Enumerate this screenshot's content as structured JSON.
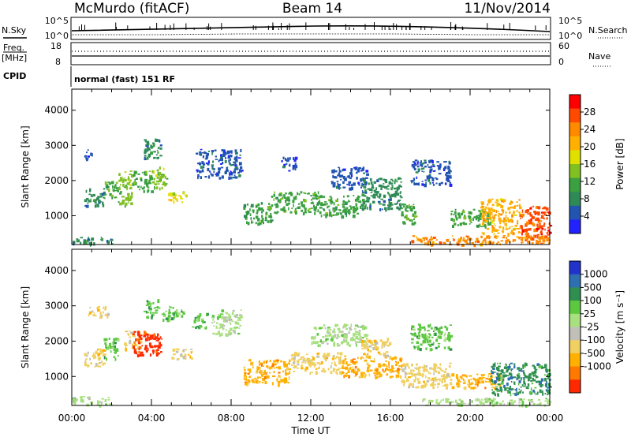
{
  "header": {
    "station": "McMurdo (fitACF)",
    "beam": "Beam 14",
    "date": "11/Nov/2014"
  },
  "status_panel": {
    "nsky_label": "N.Sky",
    "nsearch_label": "N.Search",
    "noise_ticks": [
      "10^5",
      "10^0"
    ],
    "freq_label_1": "Freq.",
    "freq_label_2": "[MHz]",
    "freq_ticks": [
      "18",
      "8"
    ],
    "nave_label": "Nave",
    "nave_ticks": [
      "60",
      "0"
    ],
    "cpid_label": "CPID",
    "cpid_value": "normal (fast) 151 RF"
  },
  "chart_data": [
    {
      "type": "heatmap",
      "name": "power",
      "ylabel": "Slant Range [km]",
      "xlabel": "",
      "xlim": [
        "00:00",
        "24:00"
      ],
      "ylim": [
        180,
        4600
      ],
      "x_ticks": [
        "00:00",
        "04:00",
        "08:00",
        "12:00",
        "16:00",
        "20:00",
        "00:00"
      ],
      "y_ticks": [
        1000,
        2000,
        3000,
        4000
      ],
      "colorbar_label": "Power [dB]",
      "colorbar_ticks": [
        28,
        24,
        20,
        16,
        12,
        8,
        4
      ],
      "colorbar_colors": [
        "#ff0000",
        "#ff4a00",
        "#ff8a00",
        "#ffb000",
        "#e0e000",
        "#80c020",
        "#3aa040",
        "#2e8b57",
        "#2255b0",
        "#2222ff"
      ],
      "colorbar_range": [
        0,
        32
      ],
      "regions": [
        {
          "t": [
            0.6,
            1.6
          ],
          "r": [
            1300,
            1800
          ],
          "v": 8
        },
        {
          "t": [
            0.6,
            1.0
          ],
          "r": [
            2600,
            2900
          ],
          "v": 6
        },
        {
          "t": [
            1.6,
            2.3
          ],
          "r": [
            1500,
            2000
          ],
          "v": 10
        },
        {
          "t": [
            2.3,
            3.0
          ],
          "r": [
            1300,
            2300
          ],
          "v": 14
        },
        {
          "t": [
            3.0,
            4.0
          ],
          "r": [
            1700,
            2300
          ],
          "v": 10
        },
        {
          "t": [
            3.6,
            4.5
          ],
          "r": [
            2600,
            3200
          ],
          "v": 7
        },
        {
          "t": [
            4.0,
            4.8
          ],
          "r": [
            1800,
            2400
          ],
          "v": 14
        },
        {
          "t": [
            4.8,
            5.8
          ],
          "r": [
            1400,
            1700
          ],
          "v": 16
        },
        {
          "t": [
            6.2,
            8.5
          ],
          "r": [
            2100,
            2900
          ],
          "v": 6
        },
        {
          "t": [
            8.6,
            10.0
          ],
          "r": [
            800,
            1400
          ],
          "v": 12
        },
        {
          "t": [
            10.0,
            12.5
          ],
          "r": [
            1100,
            1700
          ],
          "v": 10
        },
        {
          "t": [
            10.5,
            11.2
          ],
          "r": [
            2300,
            2700
          ],
          "v": 6
        },
        {
          "t": [
            12.5,
            14.5
          ],
          "r": [
            1000,
            1600
          ],
          "v": 10
        },
        {
          "t": [
            13.0,
            14.8
          ],
          "r": [
            1800,
            2400
          ],
          "v": 6
        },
        {
          "t": [
            14.5,
            16.5
          ],
          "r": [
            1200,
            2100
          ],
          "v": 8
        },
        {
          "t": [
            16.5,
            17.3
          ],
          "r": [
            800,
            1400
          ],
          "v": 12
        },
        {
          "t": [
            17.0,
            19.0
          ],
          "r": [
            1900,
            2600
          ],
          "v": 6
        },
        {
          "t": [
            19.0,
            21.0
          ],
          "r": [
            700,
            1200
          ],
          "v": 12
        },
        {
          "t": [
            20.5,
            22.5
          ],
          "r": [
            500,
            1500
          ],
          "v": 22
        },
        {
          "t": [
            22.5,
            24.0
          ],
          "r": [
            400,
            1300
          ],
          "v": 26
        },
        {
          "t": [
            17.0,
            24.0
          ],
          "r": [
            200,
            450
          ],
          "v": 24
        },
        {
          "t": [
            0.0,
            2.0
          ],
          "r": [
            200,
            400
          ],
          "v": 8
        }
      ]
    },
    {
      "type": "heatmap",
      "name": "velocity",
      "ylabel": "Slant Range [km]",
      "xlabel": "Time UT",
      "xlim": [
        "00:00",
        "24:00"
      ],
      "ylim": [
        180,
        4600
      ],
      "x_ticks": [
        "00:00",
        "04:00",
        "08:00",
        "12:00",
        "16:00",
        "20:00",
        "00:00"
      ],
      "y_ticks": [
        1000,
        2000,
        3000,
        4000
      ],
      "colorbar_label": "Velocity [m s⁻¹]",
      "colorbar_ticks": [
        1000,
        500,
        100,
        25,
        -25,
        -100,
        -500,
        -1000
      ],
      "colorbar_colors": [
        "#2233cc",
        "#2d6fb0",
        "#2f8f50",
        "#5cc840",
        "#a8e080",
        "#c0c0b8",
        "#f0d060",
        "#ffb000",
        "#ff7800",
        "#ff2800"
      ],
      "regions": [
        {
          "t": [
            0.6,
            1.6
          ],
          "r": [
            1300,
            1800
          ],
          "v": -100
        },
        {
          "t": [
            0.8,
            1.8
          ],
          "r": [
            2700,
            3000
          ],
          "v": -100
        },
        {
          "t": [
            1.6,
            2.3
          ],
          "r": [
            1500,
            2100
          ],
          "v": 100
        },
        {
          "t": [
            2.6,
            3.4
          ],
          "r": [
            1800,
            2300
          ],
          "v": -100
        },
        {
          "t": [
            3.0,
            4.5
          ],
          "r": [
            1600,
            2300
          ],
          "v": -1000
        },
        {
          "t": [
            3.6,
            4.4
          ],
          "r": [
            2700,
            3200
          ],
          "v": 100
        },
        {
          "t": [
            4.5,
            5.6
          ],
          "r": [
            2600,
            3000
          ],
          "v": 100
        },
        {
          "t": [
            6.0,
            6.8
          ],
          "r": [
            2400,
            2800
          ],
          "v": 100
        },
        {
          "t": [
            7.0,
            8.5
          ],
          "r": [
            2200,
            2900
          ],
          "v": 25
        },
        {
          "t": [
            5.0,
            6.0
          ],
          "r": [
            1500,
            1800
          ],
          "v": -100
        },
        {
          "t": [
            8.6,
            11.0
          ],
          "r": [
            800,
            1500
          ],
          "v": -500
        },
        {
          "t": [
            11.0,
            13.5
          ],
          "r": [
            1100,
            1700
          ],
          "v": -100
        },
        {
          "t": [
            12.0,
            14.8
          ],
          "r": [
            1900,
            2500
          ],
          "v": 25
        },
        {
          "t": [
            13.5,
            16.5
          ],
          "r": [
            1000,
            1600
          ],
          "v": -500
        },
        {
          "t": [
            14.5,
            16.0
          ],
          "r": [
            1600,
            2100
          ],
          "v": -100
        },
        {
          "t": [
            16.5,
            19.0
          ],
          "r": [
            700,
            1400
          ],
          "v": -100
        },
        {
          "t": [
            17.0,
            19.0
          ],
          "r": [
            1800,
            2500
          ],
          "v": 100
        },
        {
          "t": [
            19.0,
            21.5
          ],
          "r": [
            700,
            1100
          ],
          "v": -500
        },
        {
          "t": [
            21.0,
            24.0
          ],
          "r": [
            500,
            1400
          ],
          "v": 500
        },
        {
          "t": [
            0.0,
            2.0
          ],
          "r": [
            200,
            450
          ],
          "v": 25
        },
        {
          "t": [
            17.5,
            24.0
          ],
          "r": [
            200,
            400
          ],
          "v": 25
        }
      ]
    }
  ]
}
